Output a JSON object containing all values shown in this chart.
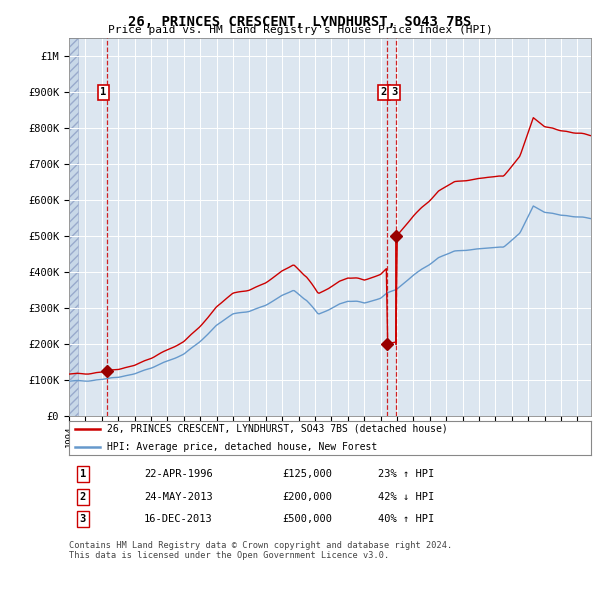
{
  "title": "26, PRINCES CRESCENT, LYNDHURST, SO43 7BS",
  "subtitle": "Price paid vs. HM Land Registry's House Price Index (HPI)",
  "legend_line1": "26, PRINCES CRESCENT, LYNDHURST, SO43 7BS (detached house)",
  "legend_line2": "HPI: Average price, detached house, New Forest",
  "footer1": "Contains HM Land Registry data © Crown copyright and database right 2024.",
  "footer2": "This data is licensed under the Open Government Licence v3.0.",
  "transactions": [
    {
      "num": "1",
      "date": "22-APR-1996",
      "price": 125000,
      "hpi_pct": "23%",
      "hpi_dir": "↑"
    },
    {
      "num": "2",
      "date": "24-MAY-2013",
      "price": 200000,
      "hpi_pct": "42%",
      "hpi_dir": "↓"
    },
    {
      "num": "3",
      "date": "16-DEC-2013",
      "price": 500000,
      "hpi_pct": "40%",
      "hpi_dir": "↑"
    }
  ],
  "sale_dates_decimal": [
    1996.31,
    2013.39,
    2013.96
  ],
  "sale_prices": [
    125000,
    200000,
    500000
  ],
  "red_line_color": "#cc0000",
  "blue_line_color": "#6699cc",
  "background_color": "#dce6f0",
  "grid_color": "#ffffff",
  "marker_color": "#990000",
  "ylim_max": 1050000,
  "xmin": 1994.0,
  "xmax": 2025.83,
  "ylabel_ticks": [
    0,
    100000,
    200000,
    300000,
    400000,
    500000,
    600000,
    700000,
    800000,
    900000,
    1000000
  ],
  "ylabel_labels": [
    "£0",
    "£100K",
    "£200K",
    "£300K",
    "£400K",
    "£500K",
    "£600K",
    "£700K",
    "£800K",
    "£900K",
    "£1M"
  ],
  "key_hpi": {
    "1994.0": 95000,
    "1995.0": 99000,
    "1996.0": 103000,
    "1997.0": 109000,
    "1998.0": 118000,
    "1999.0": 133000,
    "2000.0": 152000,
    "2001.0": 172000,
    "2002.0": 208000,
    "2003.0": 252000,
    "2004.0": 283000,
    "2005.0": 292000,
    "2006.0": 308000,
    "2007.0": 335000,
    "2007.7": 348000,
    "2008.5": 320000,
    "2009.2": 282000,
    "2009.8": 295000,
    "2010.5": 312000,
    "2011.0": 318000,
    "2012.0": 313000,
    "2013.0": 328000,
    "2013.39": 342000,
    "2013.96": 352000,
    "2014.5": 372000,
    "2015.5": 408000,
    "2016.5": 440000,
    "2017.5": 458000,
    "2018.5": 462000,
    "2019.5": 466000,
    "2020.5": 468000,
    "2021.5": 508000,
    "2022.3": 585000,
    "2023.0": 568000,
    "2024.0": 558000,
    "2025.0": 552000,
    "2025.83": 548000
  }
}
